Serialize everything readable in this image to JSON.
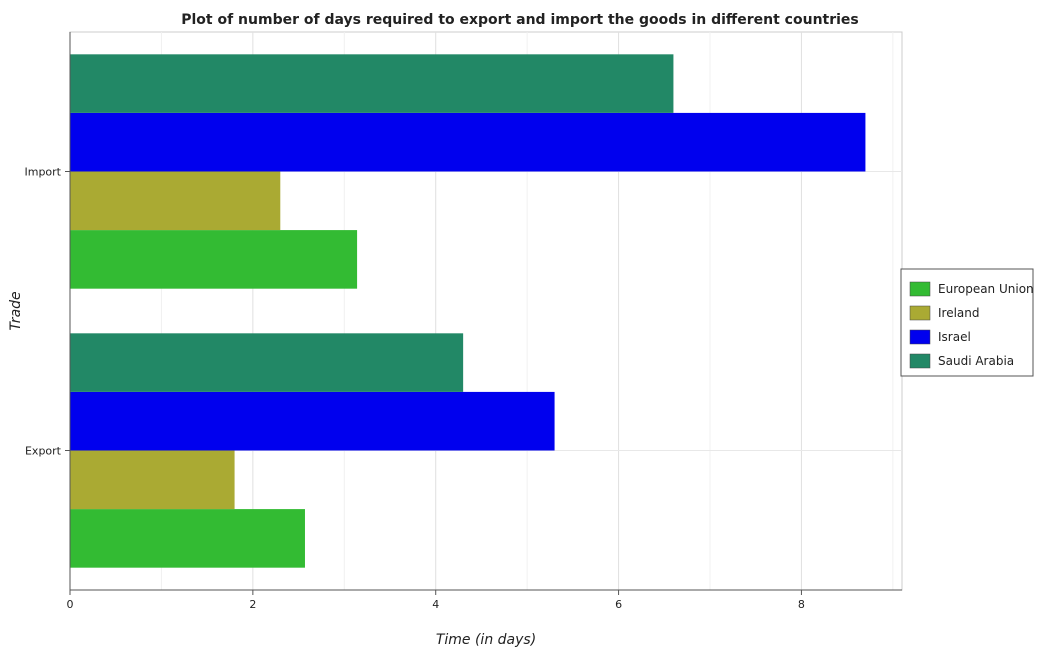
{
  "chart_data": {
    "type": "bar",
    "orientation": "horizontal",
    "title": "Plot of number of days required to export and import the goods in different countries",
    "xlabel": "Time (in days)",
    "ylabel": "Trade",
    "categories": [
      "Export",
      "Import"
    ],
    "xlim": [
      0,
      9.1
    ],
    "xticks": [
      0,
      2,
      4,
      6,
      8
    ],
    "grid": true,
    "legend_position": "right",
    "series": [
      {
        "name": "European Union",
        "color": "#33bb33",
        "values": [
          2.57,
          3.14
        ]
      },
      {
        "name": "Ireland",
        "color": "#aaaa33",
        "values": [
          1.8,
          2.3
        ]
      },
      {
        "name": "Israel",
        "color": "#0000ee",
        "values": [
          5.3,
          8.7
        ]
      },
      {
        "name": "Saudi Arabia",
        "color": "#228866",
        "values": [
          4.3,
          6.6
        ]
      }
    ]
  }
}
